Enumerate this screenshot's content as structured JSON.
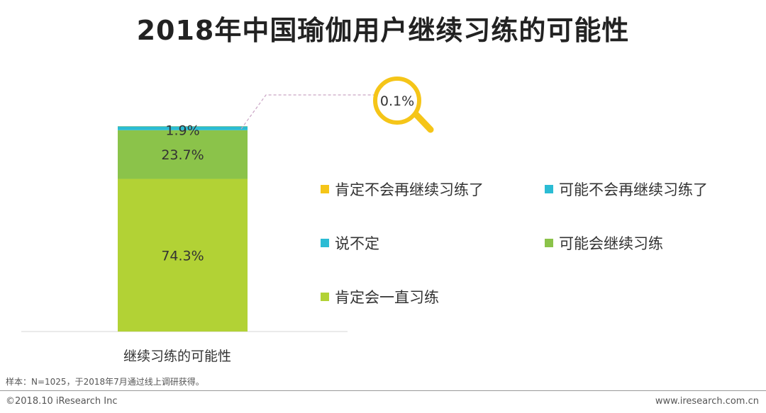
{
  "page": {
    "footnote": "样本：N=1025，于2018年7月通过线上调研获得。",
    "copyright": "©2018.10 iResearch Inc",
    "website": "www.iresearch.com.cn"
  },
  "colors": {
    "always": "#b2d235",
    "probably": "#8bc34a",
    "unsure": "#2bbcd4",
    "probably_not": "#2bbcd4",
    "definitely_not": "#f5c518",
    "callout_ring": "#f5c518"
  },
  "chart_data": {
    "type": "bar",
    "stacked": true,
    "title": "2018年中国瑜伽用户继续习练的可能性",
    "categories": [
      "继续习练的可能性"
    ],
    "series": [
      {
        "name": "肯定会一直习练",
        "values": [
          74.3
        ],
        "label": "74.3%"
      },
      {
        "name": "可能会继续习练",
        "values": [
          23.7
        ],
        "label": "23.7%"
      },
      {
        "name": "说不定",
        "values": [
          1.9
        ],
        "label": "1.9%"
      },
      {
        "name": "可能不会再继续习练了",
        "values": [
          0.0
        ],
        "label": ""
      },
      {
        "name": "肯定不会再继续习练了",
        "values": [
          0.1
        ],
        "label": "0.1%"
      }
    ],
    "ylim": [
      0,
      100
    ],
    "legend": [
      {
        "name": "肯定不会再继续习练了",
        "color": "#f5c518"
      },
      {
        "name": "可能不会再继续习练了",
        "color": "#2bbcd4"
      },
      {
        "name": "说不定",
        "color": "#2bbcd4"
      },
      {
        "name": "可能会继续习练",
        "color": "#8bc34a"
      },
      {
        "name": "肯定会一直习练",
        "color": "#b2d235"
      }
    ],
    "legend_position": "right",
    "callout": {
      "label": "0.1%",
      "series": "肯定不会再继续习练了"
    }
  }
}
